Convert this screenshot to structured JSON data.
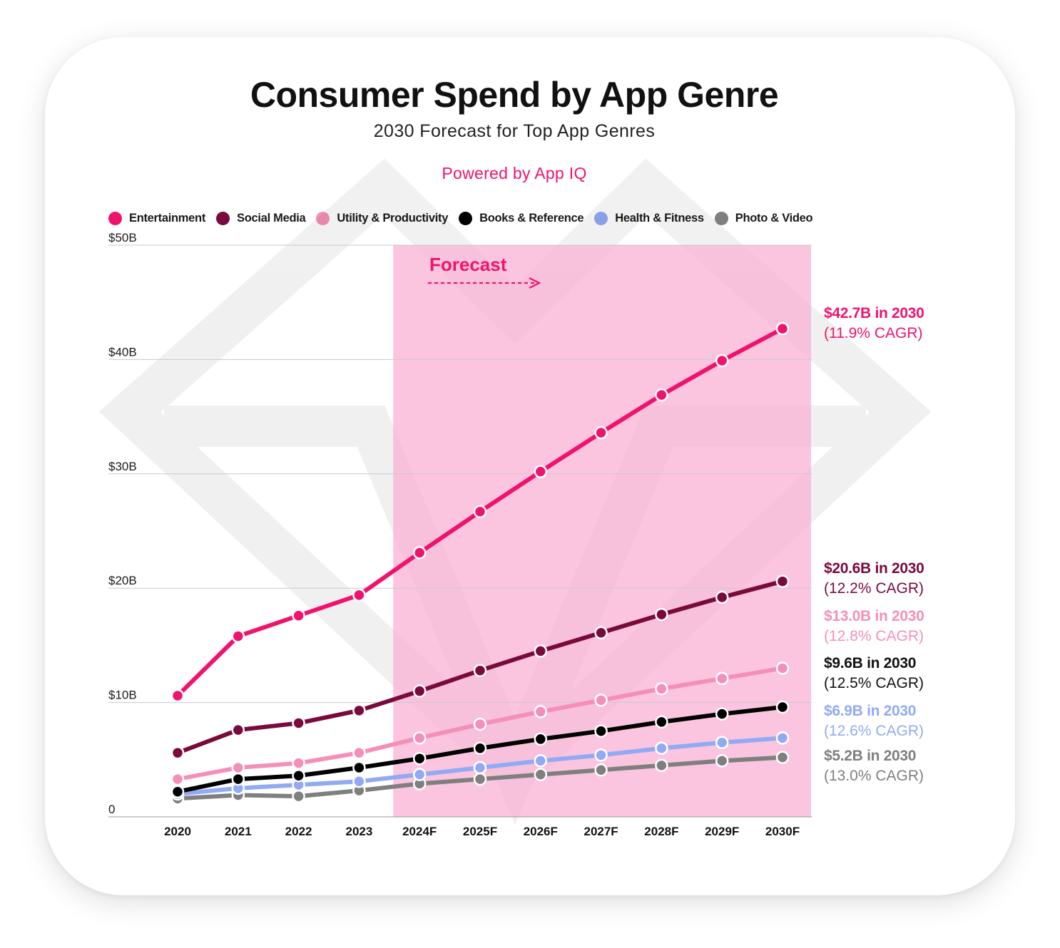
{
  "chart_data": {
    "type": "line",
    "title": "Consumer Spend by App Genre",
    "subtitle": "2030 Forecast for Top App Genres",
    "credit": "Powered by App IQ",
    "categories": [
      "2020",
      "2021",
      "2022",
      "2023",
      "2024F",
      "2025F",
      "2026F",
      "2027F",
      "2028F",
      "2029F",
      "2030F"
    ],
    "y_ticks": [
      "0",
      "$10B",
      "$20B",
      "$30B",
      "$40B",
      "$50B"
    ],
    "ylim": [
      0,
      50
    ],
    "grid": true,
    "legend_placement": "top-left",
    "forecast_label": "Forecast",
    "forecast_start_category": "2024F",
    "series": [
      {
        "name": "Entertainment",
        "color": "#f0136d",
        "values": [
          10.6,
          15.8,
          17.6,
          19.4,
          23.1,
          26.7,
          30.2,
          33.6,
          36.9,
          39.9,
          42.7
        ],
        "end_value": "$42.7B in 2030",
        "end_cagr": "(11.9% CAGR)"
      },
      {
        "name": "Social Media",
        "color": "#7a0a3c",
        "values": [
          5.6,
          7.6,
          8.2,
          9.3,
          11.0,
          12.8,
          14.5,
          16.1,
          17.7,
          19.2,
          20.6
        ],
        "end_value": "$20.6B in 2030",
        "end_cagr": "(12.2% CAGR)"
      },
      {
        "name": "Utility & Productivity",
        "color": "#f490b8",
        "values": [
          3.3,
          4.3,
          4.7,
          5.6,
          6.9,
          8.1,
          9.2,
          10.2,
          11.2,
          12.1,
          13.0
        ],
        "end_value": "$13.0B in 2030",
        "end_cagr": "(12.8% CAGR)"
      },
      {
        "name": "Books & Reference",
        "color": "#000000",
        "values": [
          2.2,
          3.3,
          3.6,
          4.3,
          5.1,
          6.0,
          6.8,
          7.5,
          8.3,
          9.0,
          9.6
        ],
        "end_value": "$9.6B in 2030",
        "end_cagr": "(12.5% CAGR)"
      },
      {
        "name": "Health & Fitness",
        "color": "#92aaf4",
        "values": [
          2.0,
          2.5,
          2.8,
          3.1,
          3.7,
          4.3,
          4.9,
          5.4,
          6.0,
          6.5,
          6.9
        ],
        "end_value": "$6.9B in 2030",
        "end_cagr": "(12.6% CAGR)"
      },
      {
        "name": "Photo & Video",
        "color": "#7f7f7f",
        "values": [
          1.6,
          1.9,
          1.8,
          2.3,
          2.9,
          3.3,
          3.7,
          4.1,
          4.5,
          4.9,
          5.2
        ],
        "end_value": "$5.2B in 2030",
        "end_cagr": "(13.0% CAGR)"
      }
    ]
  }
}
